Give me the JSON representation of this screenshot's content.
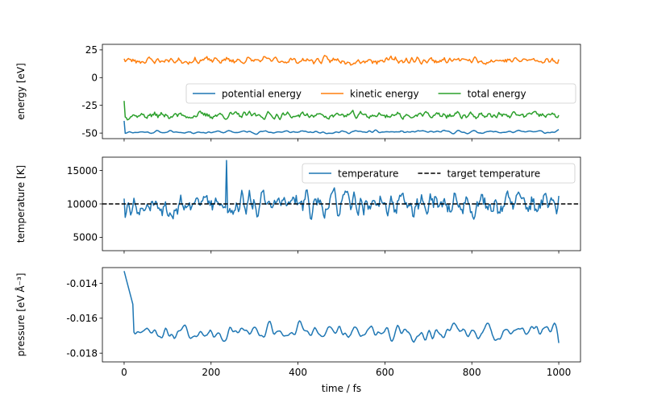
{
  "chart_data": [
    {
      "type": "line",
      "ylabel": "energy [eV]",
      "xlim": [
        -50,
        1050
      ],
      "ylim": [
        -55,
        30
      ],
      "yticks": [
        25,
        0,
        -25,
        -50
      ],
      "legend": {
        "placement": "right, below top",
        "columns": 3
      },
      "series": [
        {
          "name": "potential energy",
          "color": "#1f77b4",
          "x_range": [
            0,
            1000
          ],
          "n": 400,
          "base": -49,
          "amp": 2.2,
          "seed": 11,
          "smooth": 2,
          "start_value": -39
        },
        {
          "name": "kinetic energy",
          "color": "#ff7f0e",
          "x_range": [
            0,
            1000
          ],
          "n": 400,
          "base": 15.5,
          "amp": 4.5,
          "seed": 23,
          "smooth": 1,
          "start_value": 17
        },
        {
          "name": "total energy",
          "color": "#2ca02c",
          "x_range": [
            0,
            1000
          ],
          "n": 400,
          "base": -34,
          "amp": 4.5,
          "seed": 37,
          "smooth": 1,
          "start_value": -21
        }
      ]
    },
    {
      "type": "line",
      "ylabel": "temperature [K]",
      "xlim": [
        -50,
        1050
      ],
      "ylim": [
        3000,
        17000
      ],
      "yticks": [
        15000,
        10000,
        5000
      ],
      "legend": {
        "placement": "top-right",
        "columns": 2
      },
      "series": [
        {
          "name": "temperature",
          "color": "#1f77b4",
          "x_range": [
            0,
            1000
          ],
          "n": 400,
          "base": 10000,
          "amp": 2400,
          "seed": 53,
          "smooth": 1,
          "start_value": 10800,
          "peak": {
            "x": 236,
            "value": 16500
          }
        },
        {
          "name": "target temperature",
          "color": "#000000",
          "dashed": true,
          "constant": 10000
        }
      ]
    },
    {
      "type": "line",
      "ylabel": "pressure [eV Å⁻³]",
      "xlabel": "time / fs",
      "xlim": [
        -50,
        1050
      ],
      "ylim": [
        -0.0185,
        -0.0131
      ],
      "yticks": [
        -0.014,
        -0.016,
        -0.018
      ],
      "xticks": [
        0,
        200,
        400,
        600,
        800,
        1000
      ],
      "series": [
        {
          "name": "pressure",
          "color": "#1f77b4",
          "x_range": [
            0,
            1000
          ],
          "n": 400,
          "base": -0.0168,
          "amp": 0.00065,
          "seed": 71,
          "smooth": 3,
          "start_value": -0.0133,
          "decay": {
            "value": -0.0152,
            "steps": 8
          }
        }
      ]
    }
  ]
}
